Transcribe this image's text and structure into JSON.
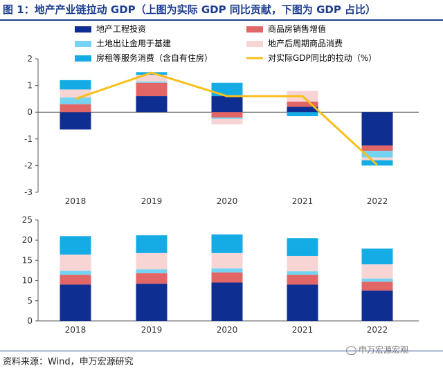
{
  "title": "图 1：地产产业链拉动 GDP（上图为实际 GDP 同比贡献，下图为 GDP 占比）",
  "source": "资料来源：Wind，申万宏源研究",
  "watermark": "申万宏源宏观",
  "colors": {
    "title": "#1c3d8f",
    "s1": "#0f2e91",
    "s2": "#e36666",
    "s3": "#74d3f1",
    "s4": "#f8d5d5",
    "s5": "#15ace6",
    "line": "#f8bf1b"
  },
  "legend": [
    {
      "label": "地产工程投资",
      "key": "s1",
      "kind": "box"
    },
    {
      "label": "商品房销售增值",
      "key": "s2",
      "kind": "box"
    },
    {
      "label": "土地出让金用于基建",
      "key": "s3",
      "kind": "box"
    },
    {
      "label": "地产后周期商品消费",
      "key": "s4",
      "kind": "box"
    },
    {
      "label": "房租等服务消费（含自有住房）",
      "key": "s5",
      "kind": "box"
    },
    {
      "label": "对实际GDP同比的拉动（%）",
      "key": "line",
      "kind": "line"
    }
  ],
  "chart_data": [
    {
      "type": "bar",
      "stacked": true,
      "categories": [
        "2018",
        "2019",
        "2020",
        "2021",
        "2022"
      ],
      "ylim": [
        -3,
        2
      ],
      "yticks": [
        "-3",
        "-2",
        "-1",
        "0",
        "1",
        "2"
      ],
      "series": [
        {
          "name": "地产工程投资",
          "key": "s1",
          "values": [
            -0.65,
            0.6,
            0.6,
            0.2,
            -1.25
          ]
        },
        {
          "name": "商品房销售增值",
          "key": "s2",
          "values": [
            0.3,
            0.5,
            -0.2,
            0.2,
            -0.2
          ]
        },
        {
          "name": "土地出让金用于基建",
          "key": "s3",
          "values": [
            0.25,
            0.05,
            -0.05,
            0.0,
            -0.25
          ]
        },
        {
          "name": "地产后周期商品消费",
          "key": "s4",
          "values": [
            0.3,
            0.25,
            -0.2,
            0.4,
            -0.1
          ]
        },
        {
          "name": "房租等服务消费（含自有住房）",
          "key": "s5",
          "values": [
            0.35,
            0.1,
            0.5,
            -0.15,
            -0.2
          ]
        }
      ],
      "line": {
        "name": "对实际GDP同比的拉动（%）",
        "key": "line",
        "values": [
          0.5,
          1.48,
          0.6,
          0.6,
          -1.98
        ]
      }
    },
    {
      "type": "bar",
      "stacked": true,
      "categories": [
        "2018",
        "2019",
        "2020",
        "2021",
        "2022"
      ],
      "ylim": [
        0,
        25
      ],
      "yticks": [
        "0",
        "5",
        "10",
        "15",
        "20",
        "25"
      ],
      "series": [
        {
          "key": "s1",
          "values": [
            9.0,
            9.2,
            9.5,
            9.0,
            7.5
          ]
        },
        {
          "key": "s2",
          "values": [
            2.4,
            2.6,
            2.5,
            2.4,
            2.2
          ]
        },
        {
          "key": "s3",
          "values": [
            1.0,
            1.0,
            1.0,
            0.9,
            0.8
          ]
        },
        {
          "key": "s4",
          "values": [
            4.0,
            4.0,
            3.8,
            3.8,
            3.5
          ]
        },
        {
          "key": "s5",
          "values": [
            4.6,
            4.4,
            4.6,
            4.4,
            3.9
          ]
        }
      ]
    }
  ]
}
